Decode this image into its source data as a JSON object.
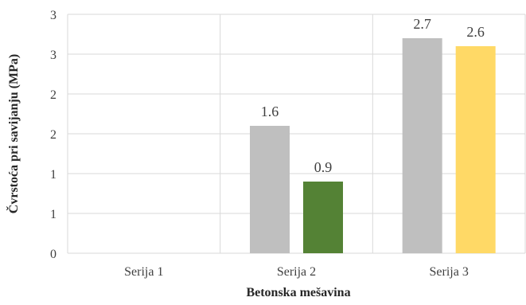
{
  "chart_data": {
    "type": "bar",
    "categories": [
      "Serija 1",
      "Serija 2",
      "Serija 3"
    ],
    "bars": [
      {
        "category": "Serija 2",
        "value": 1.6,
        "color": "#bfbfbf",
        "label": "1.6"
      },
      {
        "category": "Serija 2",
        "value": 0.9,
        "color": "#548235",
        "label": "0.9"
      },
      {
        "category": "Serija 3",
        "value": 2.7,
        "color": "#bfbfbf",
        "label": "2.7"
      },
      {
        "category": "Serija 3",
        "value": 2.6,
        "color": "#ffd966",
        "label": "2.6"
      }
    ],
    "yticks": [
      0,
      0.5,
      1,
      1.5,
      2,
      2.5,
      3
    ],
    "ytick_labels": [
      "0",
      "1",
      "1",
      "2",
      "2",
      "3",
      "3"
    ],
    "ylim": [
      0,
      3
    ],
    "xlabel": "Betonska mešavina",
    "ylabel": "Čvrstoća pri savijanju (MPa)",
    "grid": true,
    "legend": null
  }
}
